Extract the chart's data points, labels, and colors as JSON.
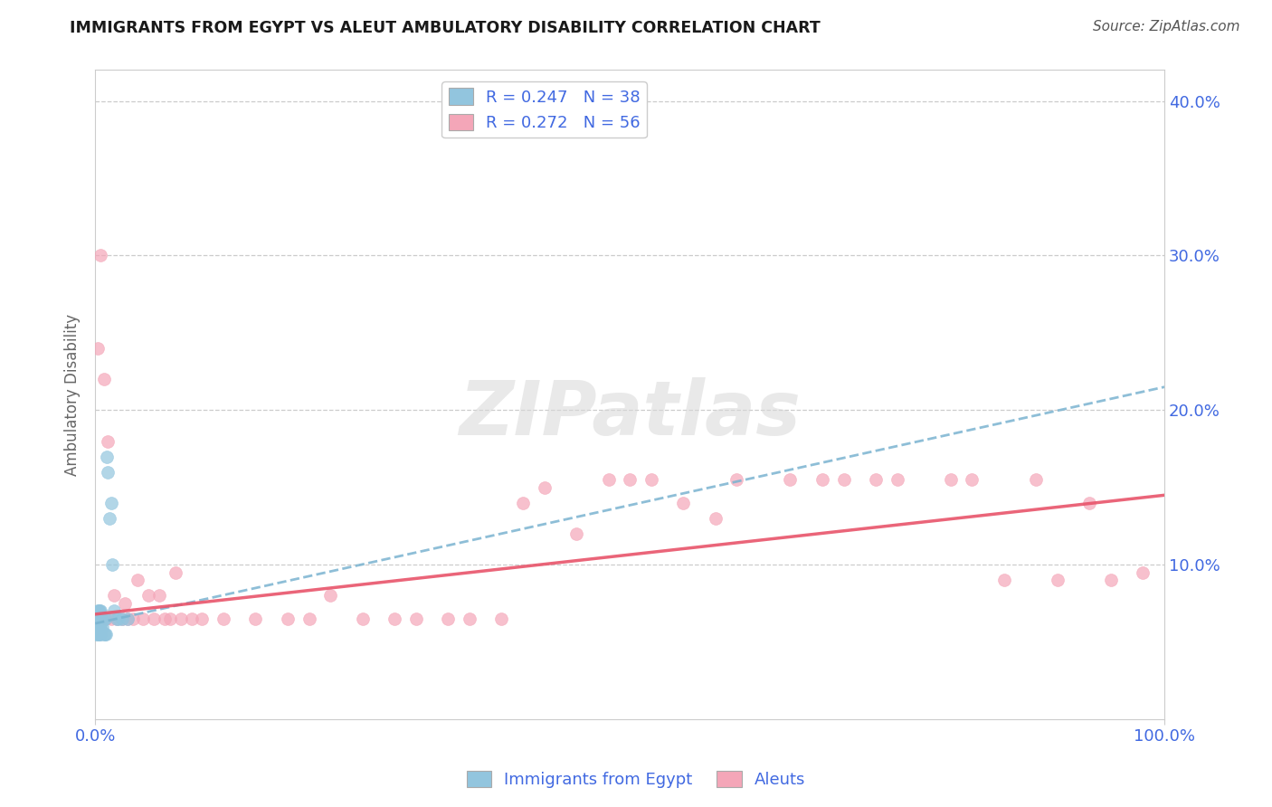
{
  "title": "IMMIGRANTS FROM EGYPT VS ALEUT AMBULATORY DISABILITY CORRELATION CHART",
  "source": "Source: ZipAtlas.com",
  "ylabel": "Ambulatory Disability",
  "xlim": [
    0,
    1.0
  ],
  "ylim": [
    0,
    0.42
  ],
  "xticks": [
    0.0,
    1.0
  ],
  "xticklabels": [
    "0.0%",
    "100.0%"
  ],
  "yticks": [
    0.0,
    0.1,
    0.2,
    0.3,
    0.4
  ],
  "yticklabels_left": [
    "",
    "",
    "",
    "",
    ""
  ],
  "yticklabels_right": [
    "",
    "10.0%",
    "20.0%",
    "30.0%",
    "40.0%"
  ],
  "legend_r1": "R = 0.247",
  "legend_n1": "N = 38",
  "legend_r2": "R = 0.272",
  "legend_n2": "N = 56",
  "blue_color": "#92c5de",
  "pink_color": "#f4a6b8",
  "blue_line_color": "#7ab3d0",
  "pink_line_color": "#e8546a",
  "label_color": "#4169E1",
  "legend_label1": "Immigrants from Egypt",
  "legend_label2": "Aleuts",
  "blue_x": [
    0.001,
    0.001,
    0.002,
    0.002,
    0.002,
    0.002,
    0.003,
    0.003,
    0.003,
    0.003,
    0.004,
    0.004,
    0.004,
    0.004,
    0.005,
    0.005,
    0.005,
    0.005,
    0.005,
    0.006,
    0.006,
    0.007,
    0.007,
    0.008,
    0.008,
    0.009,
    0.009,
    0.01,
    0.011,
    0.012,
    0.013,
    0.015,
    0.016,
    0.018,
    0.02,
    0.022,
    0.025,
    0.03
  ],
  "blue_y": [
    0.055,
    0.06,
    0.055,
    0.06,
    0.065,
    0.07,
    0.055,
    0.06,
    0.065,
    0.07,
    0.055,
    0.06,
    0.065,
    0.07,
    0.055,
    0.058,
    0.062,
    0.066,
    0.07,
    0.058,
    0.065,
    0.06,
    0.065,
    0.055,
    0.065,
    0.055,
    0.065,
    0.055,
    0.17,
    0.16,
    0.13,
    0.14,
    0.1,
    0.07,
    0.065,
    0.065,
    0.065,
    0.065
  ],
  "pink_x": [
    0.002,
    0.005,
    0.008,
    0.01,
    0.012,
    0.015,
    0.018,
    0.02,
    0.025,
    0.028,
    0.03,
    0.035,
    0.04,
    0.045,
    0.05,
    0.055,
    0.06,
    0.065,
    0.07,
    0.075,
    0.08,
    0.09,
    0.1,
    0.12,
    0.15,
    0.18,
    0.2,
    0.22,
    0.25,
    0.28,
    0.3,
    0.33,
    0.35,
    0.38,
    0.4,
    0.42,
    0.45,
    0.48,
    0.5,
    0.52,
    0.55,
    0.58,
    0.6,
    0.65,
    0.68,
    0.7,
    0.73,
    0.75,
    0.8,
    0.82,
    0.85,
    0.88,
    0.9,
    0.93,
    0.95,
    0.98
  ],
  "pink_y": [
    0.24,
    0.3,
    0.22,
    0.065,
    0.18,
    0.065,
    0.08,
    0.065,
    0.065,
    0.075,
    0.065,
    0.065,
    0.09,
    0.065,
    0.08,
    0.065,
    0.08,
    0.065,
    0.065,
    0.095,
    0.065,
    0.065,
    0.065,
    0.065,
    0.065,
    0.065,
    0.065,
    0.08,
    0.065,
    0.065,
    0.065,
    0.065,
    0.065,
    0.065,
    0.14,
    0.15,
    0.12,
    0.155,
    0.155,
    0.155,
    0.14,
    0.13,
    0.155,
    0.155,
    0.155,
    0.155,
    0.155,
    0.155,
    0.155,
    0.155,
    0.09,
    0.155,
    0.09,
    0.14,
    0.09,
    0.095
  ],
  "blue_trend_x": [
    0.0,
    1.0
  ],
  "blue_trend_y": [
    0.062,
    0.215
  ],
  "pink_trend_x": [
    0.0,
    1.0
  ],
  "pink_trend_y": [
    0.068,
    0.145
  ],
  "watermark_text": "ZIPatlas",
  "background_color": "#ffffff",
  "grid_color": "#cccccc",
  "spine_color": "#cccccc"
}
